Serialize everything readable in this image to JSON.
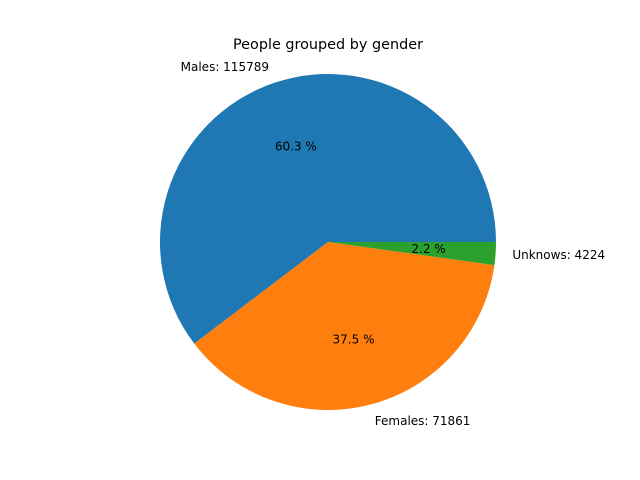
{
  "chart_data": {
    "type": "pie",
    "title": "People grouped by gender",
    "slices": [
      {
        "label": "Males: 115789",
        "value": 115789,
        "pct_label": "60.3 %",
        "color": "#1f77b4"
      },
      {
        "label": "Females: 71861",
        "value": 71861,
        "pct_label": "37.5 %",
        "color": "#ff7f0e"
      },
      {
        "label": "Unknows: 4224",
        "value": 4224,
        "pct_label": "2.2 %",
        "color": "#2ca02c"
      }
    ],
    "start_angle_deg": 0,
    "direction": "counterclockwise"
  }
}
